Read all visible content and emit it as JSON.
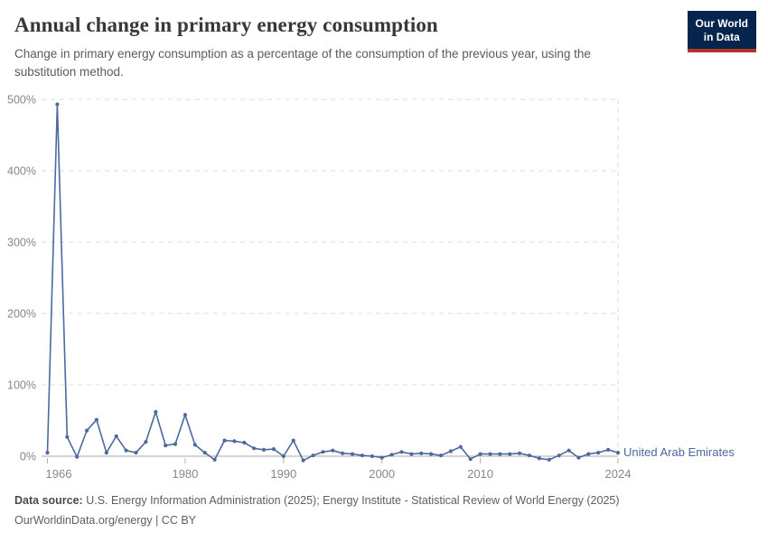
{
  "header": {
    "title": "Annual change in primary energy consumption",
    "subtitle": "Change in primary energy consumption as a percentage of the consumption of the previous year, using the substitution method.",
    "logo": {
      "line1": "Our World",
      "line2": "in Data"
    }
  },
  "colors": {
    "series_blue": "#4c6a9c",
    "logo_navy": "#06254e",
    "logo_red": "#b5332a",
    "gridline": "#dcdcdc",
    "zero_line": "#a8a8a8",
    "axis_text": "#878787"
  },
  "chart_data": {
    "type": "line",
    "title": "Annual change in primary energy consumption",
    "xlabel": "",
    "ylabel": "",
    "xlim": [
      1966,
      2024
    ],
    "ylim": [
      -10,
      500
    ],
    "x_ticks": [
      1966,
      1980,
      1990,
      2000,
      2010,
      2024
    ],
    "y_ticks": [
      0,
      100,
      200,
      300,
      400,
      500
    ],
    "y_tick_suffix": "%",
    "grid": "horizontal-dashed",
    "legend": "label-at-line-end",
    "series": [
      {
        "name": "United Arab Emirates",
        "color": "#4c6a9c",
        "years": [
          1966,
          1967,
          1968,
          1969,
          1970,
          1971,
          1972,
          1973,
          1974,
          1975,
          1976,
          1977,
          1978,
          1979,
          1980,
          1981,
          1982,
          1983,
          1984,
          1985,
          1986,
          1987,
          1988,
          1989,
          1990,
          1991,
          1992,
          1993,
          1994,
          1995,
          1996,
          1997,
          1998,
          1999,
          2000,
          2001,
          2002,
          2003,
          2004,
          2005,
          2006,
          2007,
          2008,
          2009,
          2010,
          2011,
          2012,
          2013,
          2014,
          2015,
          2016,
          2017,
          2018,
          2019,
          2020,
          2021,
          2022,
          2023,
          2024
        ],
        "values": [
          5,
          493,
          27,
          -1,
          36,
          51,
          5,
          28,
          8,
          5,
          20,
          62,
          15,
          17,
          58,
          16,
          5,
          -5,
          22,
          21,
          19,
          11,
          9,
          10,
          0,
          22,
          -6,
          1,
          6,
          8,
          4,
          3,
          1,
          0,
          -2,
          2,
          6,
          3,
          4,
          3,
          1,
          7,
          13,
          -4,
          3,
          3,
          3,
          3,
          4,
          1,
          -3,
          -5,
          1,
          8,
          -2,
          3,
          5,
          9,
          5
        ]
      }
    ]
  },
  "footer": {
    "data_source_label": "Data source:",
    "data_source_text": " U.S. Energy Information Administration (2025); Energy Institute - Statistical Review of World Energy (2025)",
    "license_text": "OurWorldinData.org/energy | CC BY"
  }
}
